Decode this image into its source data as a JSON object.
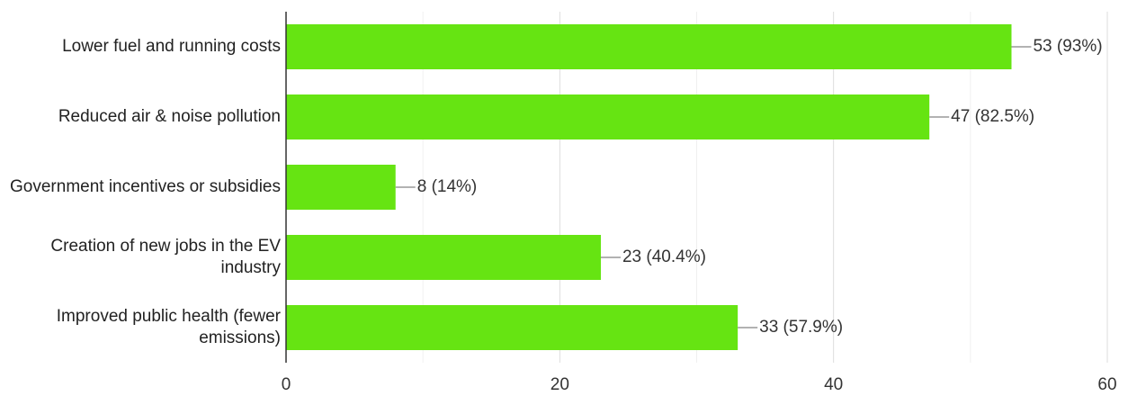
{
  "chart_data": {
    "type": "bar",
    "orientation": "horizontal",
    "categories": [
      "Lower fuel and running costs",
      "Reduced air & noise pollution",
      "Government incentives or subsidies",
      "Creation of new jobs in the EV industry",
      "Improved public health (fewer emissions)"
    ],
    "values": [
      53,
      47,
      8,
      23,
      33
    ],
    "value_labels": [
      "53 (93%)",
      "47 (82.5%)",
      "8 (14%)",
      "23 (40.4%)",
      "33 (57.9%)"
    ],
    "color": "#66e412",
    "xlim": [
      0,
      60
    ],
    "xticks": [
      0,
      20,
      40,
      60
    ],
    "xminor": [
      10,
      30,
      50
    ],
    "grid": true
  }
}
